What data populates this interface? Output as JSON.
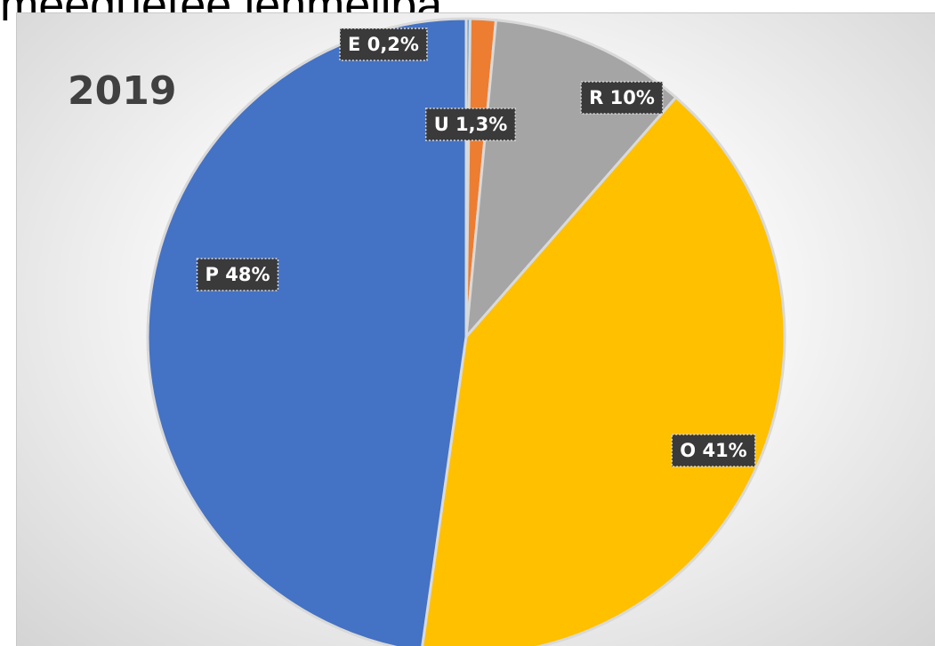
{
  "heading": "meeduetee lehmeliba",
  "chart_data": {
    "type": "pie",
    "title": "2019",
    "start_angle_deg": 0,
    "direction": "clockwise",
    "slices": [
      {
        "key": "E",
        "value": 0.2,
        "label": "E 0,2%",
        "color": "#5b9bd5"
      },
      {
        "key": "U",
        "value": 1.3,
        "label": "U 1,3%",
        "color": "#ed7d31"
      },
      {
        "key": "R",
        "value": 10,
        "label": "R 10%",
        "color": "#a5a5a5"
      },
      {
        "key": "O",
        "value": 41,
        "label": "O 41%",
        "color": "#ffc000"
      },
      {
        "key": "P",
        "value": 48,
        "label": "P 48%",
        "color": "#4472c4"
      }
    ],
    "slice_border_color": "#d9d9d9",
    "label_background": "#3a3a3a",
    "label_text_color": "#ffffff",
    "title_color": "#404040",
    "legend": "none"
  }
}
